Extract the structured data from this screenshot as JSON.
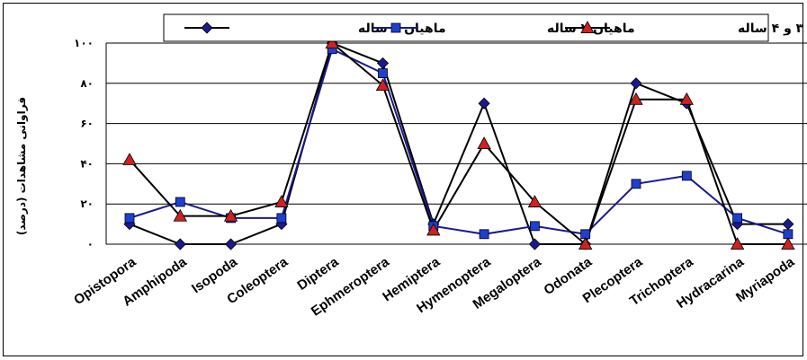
{
  "chart_data": {
    "type": "line",
    "categories": [
      "Opistopora",
      "Amphipoda",
      "Isopoda",
      "Coleoptera",
      "Diptera",
      "Ephmeroptera",
      "Hemiptera",
      "Hymenoptera",
      "Megaloptera",
      "Odonata",
      "Plecoptera",
      "Trichoptera",
      "Hydracarina",
      "Myriapoda"
    ],
    "series": [
      {
        "name": "ماهیان ۱ ساله",
        "marker": "diamond",
        "color": "#1a1a8c",
        "values": [
          10,
          0,
          0,
          10,
          100,
          90,
          10,
          70,
          0,
          0,
          80,
          70,
          10,
          10
        ]
      },
      {
        "name": "ماهیان ۲ ساله",
        "marker": "square",
        "color": "#1f3fd1",
        "values": [
          13,
          21,
          13,
          13,
          97,
          85,
          9,
          5,
          9,
          5,
          30,
          34,
          13,
          5
        ]
      },
      {
        "name": "ماهیان ۳ و ۴ ساله",
        "marker": "triangle",
        "color": "#cc2222",
        "values": [
          42,
          14,
          14,
          21,
          100,
          79,
          7,
          50,
          21,
          0,
          72,
          72,
          0,
          0
        ]
      }
    ],
    "ylabel": "فراوانی مشاهدات (درصد)",
    "ylim": [
      0,
      100
    ],
    "yticks": [
      "۰",
      "۲۰",
      "۴۰",
      "۶۰",
      "۸۰",
      "۱۰۰"
    ],
    "legend_position": "top",
    "grid": "horizontal"
  }
}
